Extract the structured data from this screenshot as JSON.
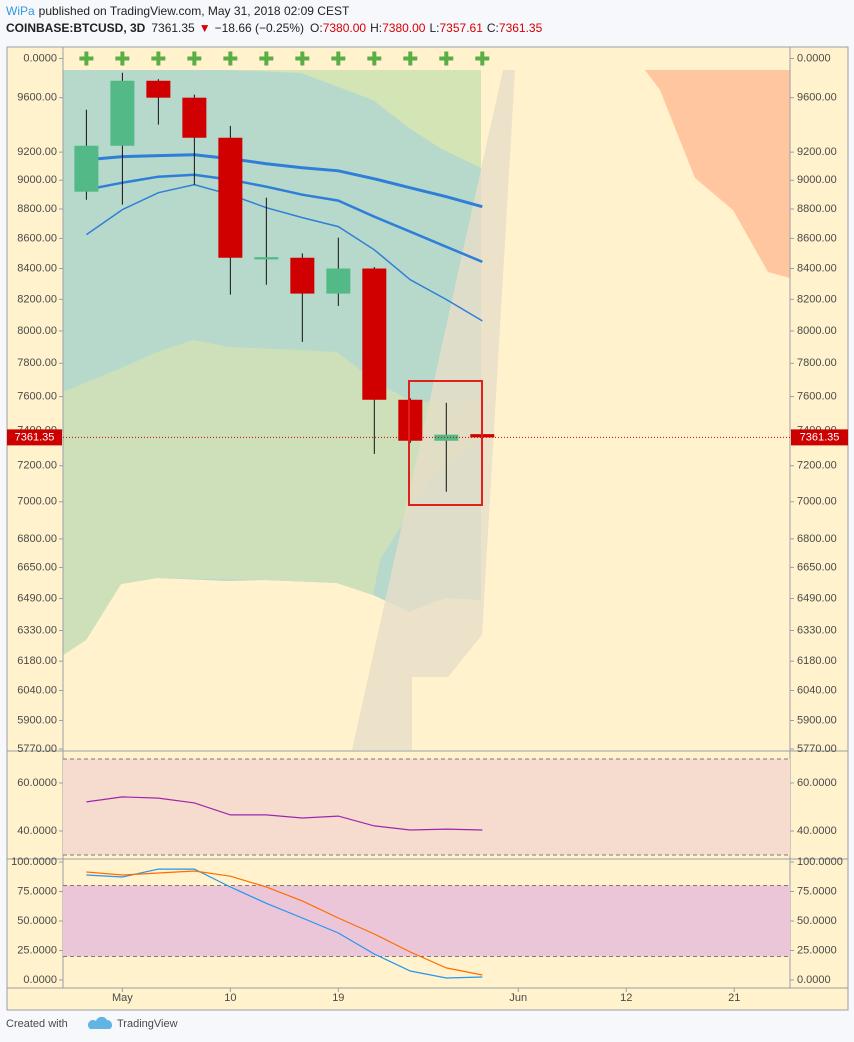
{
  "header": {
    "author": "WiPa",
    "published": "published on TradingView.com, May 31, 2018 02:09 CEST",
    "symbol": "COINBASE:BTCUSD, 3D",
    "last": "7361.35",
    "arrow": "▼",
    "change": "−18.66 (−0.25%)",
    "ohlc": [
      {
        "label": "O:",
        "value": "7380.00"
      },
      {
        "label": "H:",
        "value": "7380.00"
      },
      {
        "label": "L:",
        "value": "7357.61"
      },
      {
        "label": "C:",
        "value": "7361.35"
      }
    ]
  },
  "chart_data": [
    {
      "type": "candlestick",
      "log_scale": true,
      "up_color": "#53b987",
      "down_color": "#d00000",
      "open": [
        8920,
        9246,
        9728,
        9600,
        9304,
        8460,
        8471,
        8237,
        8400,
        7581,
        7342,
        7380
      ],
      "high": [
        9510,
        9789,
        9740,
        9623,
        9391,
        8878,
        8500,
        8605,
        8410,
        7590,
        7563,
        7380
      ],
      "low": [
        8864,
        8830,
        9400,
        8968,
        8230,
        8294,
        7932,
        8158,
        7267,
        7330,
        7055,
        7357.61
      ],
      "close": [
        9246,
        9728,
        9600,
        9304,
        8471,
        8475,
        8237,
        8400,
        7581,
        7342,
        7377,
        7361.35
      ],
      "series": [
        {
          "color": "#2f7ed8",
          "width": 3,
          "values": [
            9146,
            9168,
            9175,
            9181,
            9153,
            9117,
            9088,
            9067,
            9010,
            8947,
            8885,
            8816
          ]
        },
        {
          "color": "#2f7ed8",
          "width": 2.5,
          "values": [
            8934,
            8983,
            9025,
            9039,
            9004,
            8955,
            8899,
            8858,
            8747,
            8645,
            8544,
            8444
          ]
        },
        {
          "color": "#2f7ed8",
          "width": 1.5,
          "values": [
            8626,
            8796,
            8913,
            8969,
            8899,
            8809,
            8741,
            8680,
            8524,
            8326,
            8199,
            8063
          ]
        }
      ],
      "last_price": {
        "value": 7361.35,
        "label": "7361.35"
      },
      "last_color": "#cc0000",
      "ylim": [
        5770,
        9810
      ],
      "yticks": [
        {
          "value": 9600,
          "label": "9600.00"
        },
        {
          "value": 9200,
          "label": "9200.00"
        },
        {
          "value": 9000,
          "label": "9000.00"
        },
        {
          "value": 8800,
          "label": "8800.00"
        },
        {
          "value": 8600,
          "label": "8600.00"
        },
        {
          "value": 8400,
          "label": "8400.00"
        },
        {
          "value": 8200,
          "label": "8200.00"
        },
        {
          "value": 8000,
          "label": "8000.00"
        },
        {
          "value": 7800,
          "label": "7800.00"
        },
        {
          "value": 7600,
          "label": "7600.00"
        },
        {
          "value": 7400,
          "label": "7400.00"
        },
        {
          "value": 7200,
          "label": "7200.00"
        },
        {
          "value": 7000,
          "label": "7000.00"
        },
        {
          "value": 6800,
          "label": "6800.00"
        },
        {
          "value": 6650,
          "label": "6650.00"
        },
        {
          "value": 6490,
          "label": "6490.00"
        },
        {
          "value": 6330,
          "label": "6330.00"
        },
        {
          "value": 6180,
          "label": "6180.00"
        },
        {
          "value": 6040,
          "label": "6040.00"
        },
        {
          "value": 5900,
          "label": "5900.00"
        },
        {
          "value": 5770,
          "label": "5770.00"
        }
      ],
      "xlim": [
        -0.65,
        19.55
      ],
      "xticks": [
        {
          "value": 1,
          "label": "May"
        },
        {
          "value": 4,
          "label": "10"
        },
        {
          "value": 7,
          "label": "19"
        },
        {
          "value": 12,
          "label": "Jun"
        },
        {
          "value": 15,
          "label": "12"
        },
        {
          "value": 18,
          "label": "21"
        }
      ]
    },
    {
      "type": "signal",
      "color": "#5aae46",
      "values": [
        0,
        0,
        0,
        0,
        0,
        0,
        0,
        0,
        0,
        0,
        0,
        0
      ],
      "ylim": [
        -1,
        1
      ],
      "yticks": [
        {
          "value": 0,
          "label": "0.0000"
        }
      ]
    },
    {
      "type": "line",
      "ylim": [
        28.75,
        72.9
      ],
      "yticks": [
        {
          "value": 60,
          "label": "60.0000"
        },
        {
          "value": 40,
          "label": "40.0000"
        }
      ],
      "band": [
        30,
        70
      ],
      "band_color": "#f6dbcf",
      "series": [
        {
          "color": "#9c27b0",
          "values": [
            52.1,
            54.2,
            53.7,
            51.7,
            46.7,
            46.7,
            45.4,
            46.2,
            42.1,
            40.4,
            40.8,
            40.4
          ]
        }
      ]
    },
    {
      "type": "line",
      "ylim": [
        -6.8,
        101.7
      ],
      "yticks": [
        {
          "value": 100,
          "label": "100.0000"
        },
        {
          "value": 75,
          "label": "75.0000"
        },
        {
          "value": 50,
          "label": "50.0000"
        },
        {
          "value": 25,
          "label": "25.0000"
        },
        {
          "value": 0,
          "label": "0.0000"
        }
      ],
      "band": [
        20,
        80
      ],
      "band_color": "#ebc6d8",
      "series": [
        {
          "color": "#2196f3",
          "values": [
            89,
            87.3,
            94,
            94,
            78.8,
            65,
            52.5,
            39.8,
            22,
            7.6,
            1.7,
            2.5
          ]
        },
        {
          "color": "#ff6d00",
          "values": [
            91.5,
            89,
            90.7,
            92.4,
            88,
            78.8,
            67,
            52.5,
            39,
            23.7,
            10.2,
            4.2
          ]
        }
      ]
    }
  ],
  "footer": {
    "created": "Created with",
    "brand": "TradingView"
  }
}
